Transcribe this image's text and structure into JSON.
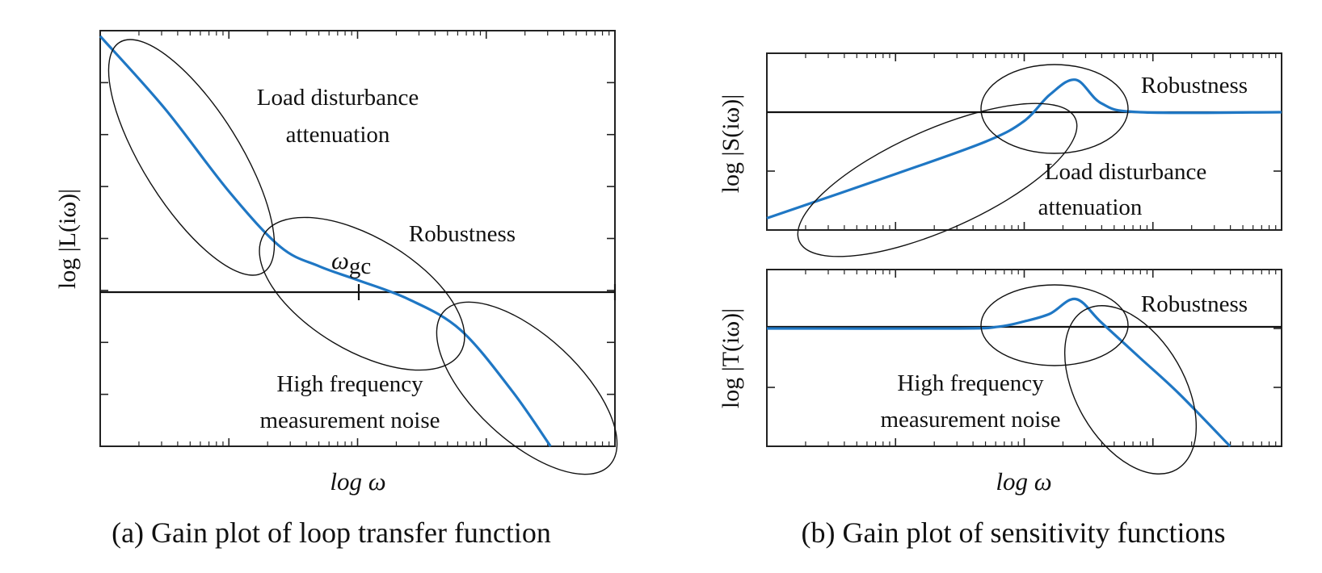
{
  "charts": {
    "loop": {
      "ylabel": "log |L(iω)|",
      "xlabel": "log ω",
      "caption": "(a) Gain plot of loop transfer function",
      "gc_label_main": "ω",
      "gc_label_sub": "gc",
      "annotations": {
        "load_line1": "Load disturbance",
        "load_line2": "attenuation",
        "robust": "Robustness",
        "noise_line1": "High frequency",
        "noise_line2": "measurement noise"
      }
    },
    "sens_s": {
      "ylabel": "log |S(iω)|",
      "annotations": {
        "robust": "Robustness",
        "load_line1": "Load disturbance",
        "load_line2": "attenuation"
      }
    },
    "sens_t": {
      "ylabel": "log |T(iω)|",
      "xlabel": "log ω",
      "annotations": {
        "robust": "Robustness",
        "noise_line1": "High frequency",
        "noise_line2": "measurement noise"
      }
    },
    "caption_b": "(b) Gain plot of sensitivity functions"
  },
  "chart_data": [
    {
      "type": "line",
      "title": "",
      "xlabel": "log ω",
      "ylabel": "log |L(iω)|",
      "x_scale": "log",
      "xlim": [
        -2,
        2
      ],
      "ylim": [
        -3,
        4.5
      ],
      "grid": false,
      "reference_line": 0,
      "marker": {
        "name": "ω_gc",
        "x": 0
      },
      "series": [
        {
          "x": [
            -2.0,
            -1.5,
            -1.0,
            -0.6,
            -0.3,
            0.0,
            0.4,
            0.8,
            1.2,
            1.5
          ],
          "y": [
            4.4,
            3.1,
            1.6,
            0.6,
            0.25,
            0.0,
            -0.35,
            -0.9,
            -2.0,
            -3.0
          ],
          "color": "#1f77c4"
        }
      ]
    },
    {
      "type": "line",
      "title": "",
      "xlabel": "",
      "ylabel": "log |S(iω)|",
      "x_scale": "log",
      "xlim": [
        -2,
        2
      ],
      "ylim": [
        -2,
        1
      ],
      "grid": false,
      "reference_line": 0,
      "series": [
        {
          "x": [
            -2.0,
            -1.0,
            -0.3,
            0.0,
            0.2,
            0.4,
            0.6,
            0.9,
            2.0
          ],
          "y": [
            -1.8,
            -1.05,
            -0.5,
            -0.15,
            0.3,
            0.55,
            0.15,
            0.0,
            0.0
          ],
          "color": "#1f77c4"
        }
      ]
    },
    {
      "type": "line",
      "title": "",
      "xlabel": "log ω",
      "ylabel": "log |T(iω)|",
      "x_scale": "log",
      "xlim": [
        -2,
        2
      ],
      "ylim": [
        -2,
        1
      ],
      "grid": false,
      "reference_line": 0,
      "series": [
        {
          "x": [
            -2.0,
            -0.5,
            -0.2,
            0.0,
            0.2,
            0.4,
            0.6,
            0.9,
            1.2,
            1.6
          ],
          "y": [
            0.0,
            0.0,
            0.03,
            0.12,
            0.25,
            0.5,
            0.1,
            -0.5,
            -1.1,
            -2.0
          ],
          "color": "#1f77c4"
        }
      ]
    }
  ]
}
